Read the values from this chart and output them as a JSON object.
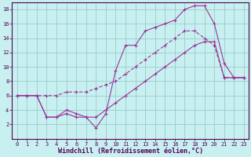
{
  "xlabel": "Windchill (Refroidissement éolien,°C)",
  "bg_color": "#c8f0f0",
  "line_color": "#993399",
  "grid_color": "#99cccc",
  "xlim": [
    -0.5,
    23.5
  ],
  "ylim": [
    0,
    19
  ],
  "xticks": [
    0,
    1,
    2,
    3,
    4,
    5,
    6,
    7,
    8,
    9,
    10,
    11,
    12,
    13,
    14,
    15,
    16,
    17,
    18,
    19,
    20,
    21,
    22,
    23
  ],
  "yticks": [
    2,
    4,
    6,
    8,
    10,
    12,
    14,
    16,
    18
  ],
  "line1_x": [
    0,
    1,
    2,
    3,
    4,
    5,
    6,
    7,
    8,
    9,
    10,
    11,
    12,
    13,
    14,
    15,
    16,
    17,
    18,
    19,
    20,
    21,
    22,
    23
  ],
  "line1_y": [
    6,
    6,
    6,
    6,
    6,
    6.5,
    6.5,
    6.5,
    7,
    7.5,
    8,
    9,
    10,
    11,
    12,
    13,
    14,
    15,
    15,
    14,
    13,
    8.5,
    8.5,
    8.5
  ],
  "line2_x": [
    0,
    1,
    2,
    3,
    4,
    5,
    6,
    7,
    8,
    9,
    10,
    11,
    12,
    13,
    14,
    15,
    16,
    17,
    18,
    19,
    20,
    21,
    22,
    23
  ],
  "line2_y": [
    6,
    6,
    6,
    3,
    3,
    3.5,
    3,
    3,
    1.5,
    3.5,
    9.5,
    13,
    13,
    15,
    15.5,
    16,
    16.5,
    18,
    18.5,
    18.5,
    16,
    10.5,
    8.5,
    8.5
  ],
  "line3_x": [
    0,
    1,
    2,
    3,
    4,
    5,
    6,
    7,
    8,
    9,
    10,
    11,
    12,
    13,
    14,
    15,
    16,
    17,
    18,
    19,
    20,
    21,
    22,
    23
  ],
  "line3_y": [
    6,
    6,
    6,
    3,
    3,
    4,
    3.5,
    3,
    3,
    4,
    5,
    6,
    7,
    8,
    9,
    10,
    11,
    12,
    13,
    13.5,
    13.5,
    8.5,
    8.5,
    8.5
  ],
  "xlabel_fontsize": 6,
  "tick_fontsize": 5
}
